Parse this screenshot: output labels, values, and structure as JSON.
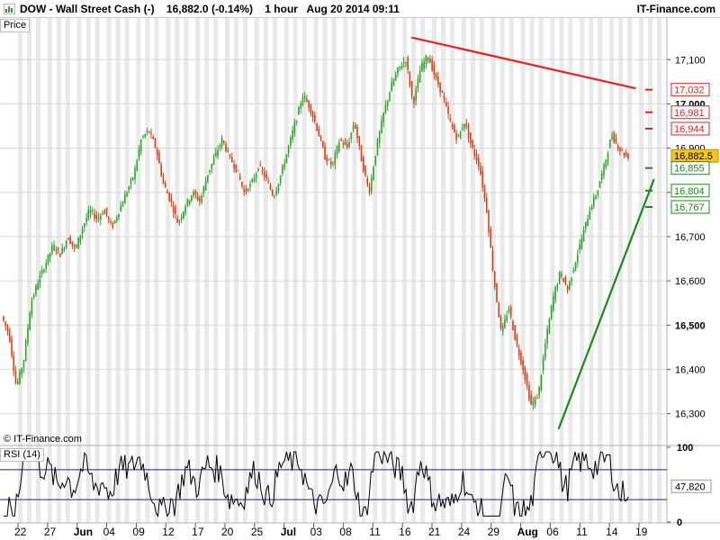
{
  "header": {
    "title": "DOW - Wall Street Cash (-)    16,882.0 (-0.14%)    1 hour   Aug 20 2014 09:11",
    "brand": "IT-Finance.com"
  },
  "panels": {
    "price_label": "Price",
    "rsi_label": "RSI (14)",
    "copyright": "© IT-Finance.com"
  },
  "colors": {
    "up_candle": "#2aa52a",
    "down_candle": "#e03c14",
    "resistance_line": "#e52222",
    "support_line": "#1a8a1a",
    "rsi_line": "#000000",
    "rsi_band": "#1c1c8c",
    "current_price_tag": "#f5c518",
    "grid_stripe": "#e9e9e9"
  },
  "chart_data": [
    {
      "type": "candlestick",
      "title": "DOW - Wall Street Cash (-)",
      "timeframe": "1 hour",
      "last_price": "16,882.0",
      "change": "-0.14%",
      "timestamp": "Aug 20 2014 09:11",
      "ylim": [
        16230,
        17190
      ],
      "y_ticks": [
        {
          "value": 16300,
          "label": "16,300",
          "bold": false
        },
        {
          "value": 16400,
          "label": "16,400",
          "bold": false
        },
        {
          "value": 16500,
          "label": "16,500",
          "bold": true
        },
        {
          "value": 16600,
          "label": "16,600",
          "bold": false
        },
        {
          "value": 16700,
          "label": "16,700",
          "bold": false
        },
        {
          "value": 16800,
          "label": "16,800",
          "bold": false
        },
        {
          "value": 16900,
          "label": "16,900",
          "bold": false
        },
        {
          "value": 17000,
          "label": "17,000",
          "bold": true
        },
        {
          "value": 17100,
          "label": "17,100",
          "bold": false
        }
      ],
      "x_ticks": [
        {
          "label": "22",
          "bold": false
        },
        {
          "label": "27",
          "bold": false
        },
        {
          "label": "Jun",
          "bold": true
        },
        {
          "label": "04",
          "bold": false
        },
        {
          "label": "09",
          "bold": false
        },
        {
          "label": "12",
          "bold": false
        },
        {
          "label": "17",
          "bold": false
        },
        {
          "label": "20",
          "bold": false
        },
        {
          "label": "25",
          "bold": false
        },
        {
          "label": "Jul",
          "bold": true
        },
        {
          "label": "03",
          "bold": false
        },
        {
          "label": "08",
          "bold": false
        },
        {
          "label": "11",
          "bold": false
        },
        {
          "label": "16",
          "bold": false
        },
        {
          "label": "21",
          "bold": false
        },
        {
          "label": "24",
          "bold": false
        },
        {
          "label": "29",
          "bold": false
        },
        {
          "label": "Aug",
          "bold": true
        },
        {
          "label": "06",
          "bold": false
        },
        {
          "label": "11",
          "bold": false
        },
        {
          "label": "14",
          "bold": false
        },
        {
          "label": "19",
          "bold": false
        }
      ],
      "price_path": [
        [
          0,
          16520
        ],
        [
          2,
          16480
        ],
        [
          4,
          16360
        ],
        [
          6,
          16420
        ],
        [
          8,
          16550
        ],
        [
          10,
          16600
        ],
        [
          12,
          16640
        ],
        [
          14,
          16680
        ],
        [
          16,
          16660
        ],
        [
          18,
          16700
        ],
        [
          20,
          16670
        ],
        [
          22,
          16720
        ],
        [
          24,
          16760
        ],
        [
          26,
          16740
        ],
        [
          28,
          16760
        ],
        [
          30,
          16720
        ],
        [
          32,
          16760
        ],
        [
          34,
          16800
        ],
        [
          36,
          16840
        ],
        [
          38,
          16920
        ],
        [
          40,
          16940
        ],
        [
          42,
          16900
        ],
        [
          44,
          16820
        ],
        [
          46,
          16780
        ],
        [
          48,
          16730
        ],
        [
          50,
          16770
        ],
        [
          52,
          16800
        ],
        [
          54,
          16780
        ],
        [
          56,
          16840
        ],
        [
          58,
          16880
        ],
        [
          60,
          16920
        ],
        [
          62,
          16880
        ],
        [
          64,
          16850
        ],
        [
          66,
          16800
        ],
        [
          68,
          16820
        ],
        [
          70,
          16860
        ],
        [
          72,
          16830
        ],
        [
          74,
          16790
        ],
        [
          76,
          16840
        ],
        [
          78,
          16900
        ],
        [
          80,
          16960
        ],
        [
          82,
          17020
        ],
        [
          84,
          16990
        ],
        [
          86,
          16940
        ],
        [
          88,
          16880
        ],
        [
          90,
          16860
        ],
        [
          92,
          16920
        ],
        [
          94,
          16900
        ],
        [
          96,
          16960
        ],
        [
          98,
          16870
        ],
        [
          100,
          16800
        ],
        [
          102,
          16900
        ],
        [
          104,
          16980
        ],
        [
          106,
          17040
        ],
        [
          108,
          17080
        ],
        [
          110,
          17100
        ],
        [
          112,
          17000
        ],
        [
          114,
          17080
        ],
        [
          116,
          17110
        ],
        [
          118,
          17060
        ],
        [
          120,
          17020
        ],
        [
          122,
          16960
        ],
        [
          124,
          16920
        ],
        [
          126,
          16960
        ],
        [
          128,
          16900
        ],
        [
          130,
          16860
        ],
        [
          132,
          16760
        ],
        [
          134,
          16600
        ],
        [
          136,
          16480
        ],
        [
          138,
          16540
        ],
        [
          140,
          16460
        ],
        [
          142,
          16400
        ],
        [
          144,
          16320
        ],
        [
          146,
          16340
        ],
        [
          148,
          16460
        ],
        [
          150,
          16560
        ],
        [
          152,
          16620
        ],
        [
          154,
          16580
        ],
        [
          156,
          16640
        ],
        [
          158,
          16700
        ],
        [
          160,
          16760
        ],
        [
          162,
          16800
        ],
        [
          164,
          16860
        ],
        [
          166,
          16930
        ],
        [
          168,
          16900
        ],
        [
          170,
          16882
        ]
      ],
      "resistance_line": {
        "from": [
          111,
          17150
        ],
        "to": [
          172,
          17035
        ]
      },
      "support_line": {
        "from": [
          151,
          16265
        ],
        "to": [
          177,
          16830
        ]
      },
      "annotations": [
        {
          "label": "17,032",
          "value": 17032,
          "kind": "resistance"
        },
        {
          "label": "16,981",
          "value": 16981,
          "kind": "resistance"
        },
        {
          "label": "16,944",
          "value": 16944,
          "kind": "resistance"
        },
        {
          "label": "16,882.5",
          "value": 16882.5,
          "kind": "current"
        },
        {
          "label": "16,855",
          "value": 16855,
          "kind": "support"
        },
        {
          "label": "16,804",
          "value": 16804,
          "kind": "support"
        },
        {
          "label": "16,767",
          "value": 16767,
          "kind": "support"
        }
      ]
    },
    {
      "type": "line",
      "title": "RSI (14)",
      "ylim": [
        0,
        100
      ],
      "y_ticks": [
        {
          "value": 100,
          "label": "100"
        },
        {
          "value": 0,
          "label": "0"
        }
      ],
      "bands": [
        70,
        30
      ],
      "last_value": "47,820"
    }
  ]
}
